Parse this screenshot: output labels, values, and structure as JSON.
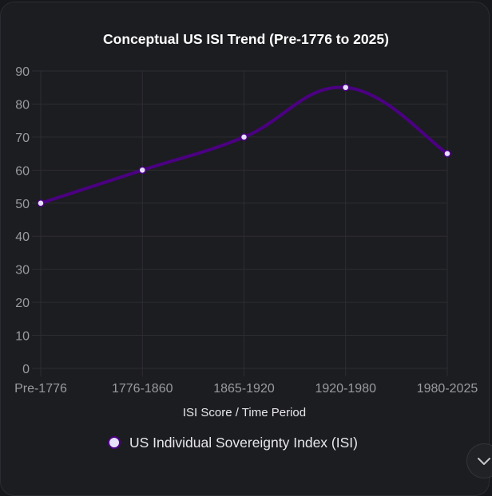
{
  "chart_data": {
    "type": "line",
    "title": "Conceptual US ISI Trend (Pre-1776 to 2025)",
    "xlabel": "ISI Score / Time Period",
    "ylabel": "",
    "categories": [
      "Pre-1776",
      "1776-1860",
      "1865-1920",
      "1920-1980",
      "1980-2025"
    ],
    "series": [
      {
        "name": "US Individual Sovereignty Index (ISI)",
        "values": [
          50,
          60,
          70,
          85,
          65
        ],
        "line_color": "#4b0082",
        "point_color": "#e6e0fa"
      }
    ],
    "ylim": [
      0,
      90
    ],
    "yticks": [
      0,
      10,
      20,
      30,
      40,
      50,
      60,
      70,
      80,
      90
    ],
    "grid": true,
    "legend_position": "bottom",
    "curve": "smooth"
  },
  "ui": {
    "scroll_button_icon": "chevron-down-icon"
  }
}
